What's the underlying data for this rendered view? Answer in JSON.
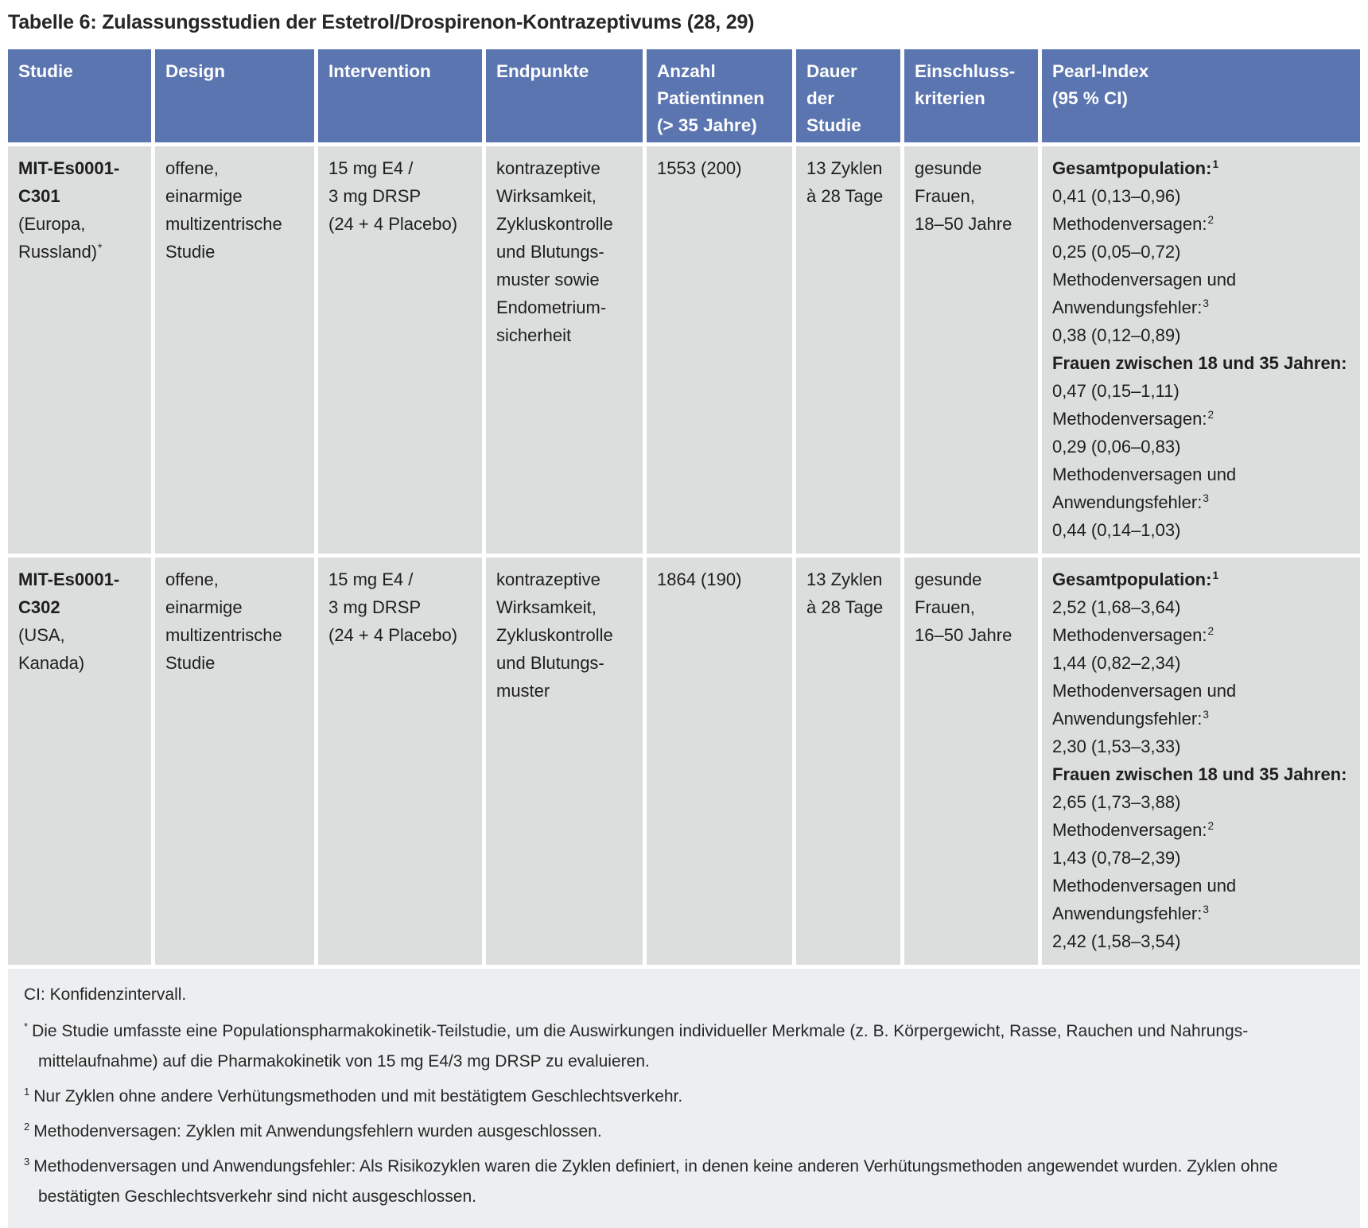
{
  "title": "Tabelle 6: Zulassungsstudien der Estetrol/Drospirenon-Kontrazeptivums (28, 29)",
  "colors": {
    "header_bg": "#5b75b0",
    "header_text": "#ffffff",
    "cell_bg": "#dcdede",
    "footer_bg": "#eceef0",
    "text": "#1e1e1e"
  },
  "table": {
    "row_keys": [
      "studie",
      "design",
      "intervention",
      "endpunkte",
      "anzahl",
      "dauer",
      "einschluss",
      "pearl"
    ],
    "header": [
      {
        "key": "studie",
        "lines": [
          "Studie"
        ]
      },
      {
        "key": "design",
        "lines": [
          "Design"
        ]
      },
      {
        "key": "intervention",
        "lines": [
          "Intervention"
        ]
      },
      {
        "key": "endpunkte",
        "lines": [
          "Endpunkte"
        ]
      },
      {
        "key": "anzahl",
        "lines": [
          "Anzahl",
          "Patientinnen",
          "(> 35 Jahre)"
        ]
      },
      {
        "key": "dauer",
        "lines": [
          "Dauer",
          "der",
          "Studie"
        ]
      },
      {
        "key": "einschluss",
        "lines": [
          "Einschluss-",
          "kriterien"
        ]
      },
      {
        "key": "pearl",
        "lines": [
          "Pearl-Index",
          "(95 % CI)"
        ]
      }
    ],
    "rows": [
      {
        "studie": [
          {
            "t": "MIT-Es0001-",
            "b": true
          },
          {
            "t": "C301",
            "b": true
          },
          {
            "t": "(Europa,"
          },
          {
            "t": "Russland)",
            "sup": "*"
          }
        ],
        "design": [
          "offene,",
          "einarmige",
          "multizentrische",
          "Studie"
        ],
        "intervention": [
          "15 mg E4 /",
          "3 mg DRSP",
          "(24 + 4 Placebo)"
        ],
        "endpunkte": [
          "kontrazeptive",
          "Wirksamkeit,",
          "Zykluskontrolle",
          "und Blutungs-",
          "muster sowie",
          "Endometrium-",
          "sicherheit"
        ],
        "anzahl": [
          "1553 (200)"
        ],
        "dauer": [
          "13 Zyklen",
          "à 28 Tage"
        ],
        "einschluss": [
          "gesunde",
          "Frauen,",
          "18–50 Jahre"
        ],
        "pearl": [
          {
            "t": "Gesamtpopulation:",
            "b": true,
            "sup": "1"
          },
          {
            "t": "0,41 (0,13–0,96)"
          },
          {
            "t": "Methodenversagen:",
            "sup": "2"
          },
          {
            "t": "0,25 (0,05–0,72)"
          },
          {
            "t": "Methodenversagen und"
          },
          {
            "t": "Anwendungsfehler:",
            "sup": "3"
          },
          {
            "t": "0,38 (0,12–0,89)"
          },
          {
            "t": "Frauen zwischen 18 und 35 Jahren:",
            "b": true
          },
          {
            "t": "0,47 (0,15–1,11)"
          },
          {
            "t": "Methodenversagen:",
            "sup": "2"
          },
          {
            "t": "0,29 (0,06–0,83)"
          },
          {
            "t": "Methodenversagen und"
          },
          {
            "t": "Anwendungsfehler:",
            "sup": "3"
          },
          {
            "t": "0,44 (0,14–1,03)"
          }
        ]
      },
      {
        "studie": [
          {
            "t": "MIT-Es0001-",
            "b": true
          },
          {
            "t": "C302",
            "b": true
          },
          {
            "t": "(USA,"
          },
          {
            "t": "Kanada)"
          }
        ],
        "design": [
          "offene,",
          "einarmige",
          "multizentrische",
          "Studie"
        ],
        "intervention": [
          "15 mg E4 /",
          "3 mg DRSP",
          "(24 + 4 Placebo)"
        ],
        "endpunkte": [
          "kontrazeptive",
          "Wirksamkeit,",
          "Zykluskontrolle",
          "und Blutungs-",
          "muster"
        ],
        "anzahl": [
          "1864 (190)"
        ],
        "dauer": [
          "13 Zyklen",
          "à 28 Tage"
        ],
        "einschluss": [
          "gesunde",
          "Frauen,",
          "16–50 Jahre"
        ],
        "pearl": [
          {
            "t": "Gesamtpopulation:",
            "b": true,
            "sup": "1"
          },
          {
            "t": "2,52 (1,68–3,64)"
          },
          {
            "t": "Methodenversagen:",
            "sup": "2"
          },
          {
            "t": "1,44 (0,82–2,34)"
          },
          {
            "t": "Methodenversagen und"
          },
          {
            "t": "Anwendungsfehler:",
            "sup": "3"
          },
          {
            "t": "2,30 (1,53–3,33)"
          },
          {
            "t": "Frauen zwischen 18 und 35 Jahren:",
            "b": true
          },
          {
            "t": "2,65 (1,73–3,88)"
          },
          {
            "t": "Methodenversagen:",
            "sup": "2"
          },
          {
            "t": "1,43 (0,78–2,39)"
          },
          {
            "t": "Methodenversagen und"
          },
          {
            "t": "Anwendungsfehler:",
            "sup": "3"
          },
          {
            "t": "2,42 (1,58–3,54)"
          }
        ]
      }
    ]
  },
  "footer": {
    "abbreviation": "CI: Konfidenzintervall.",
    "footnotes": [
      {
        "marker": "*",
        "lines": [
          "Die Studie umfasste eine Populationspharmakokinetik-Teilstudie, um die Auswirkungen individueller Merkmale (z. B. Körpergewicht, Rasse, Rauchen und Nahrungs-",
          "mittelaufnahme) auf die Pharmakokinetik von 15 mg E4/3 mg DRSP zu evaluieren."
        ]
      },
      {
        "marker": "1",
        "lines": [
          "Nur Zyklen ohne andere Verhütungsmethoden und mit bestätigtem Geschlechtsverkehr."
        ]
      },
      {
        "marker": "2",
        "lines": [
          "Methodenversagen: Zyklen mit Anwendungsfehlern wurden ausgeschlossen."
        ]
      },
      {
        "marker": "3",
        "lines": [
          "Methodenversagen und Anwendungsfehler: Als Risikozyklen waren die Zyklen definiert, in denen keine anderen Verhütungsmethoden angewendet wurden. Zyklen ohne",
          "bestätigten Geschlechtsverkehr sind nicht ausgeschlossen."
        ]
      }
    ]
  }
}
